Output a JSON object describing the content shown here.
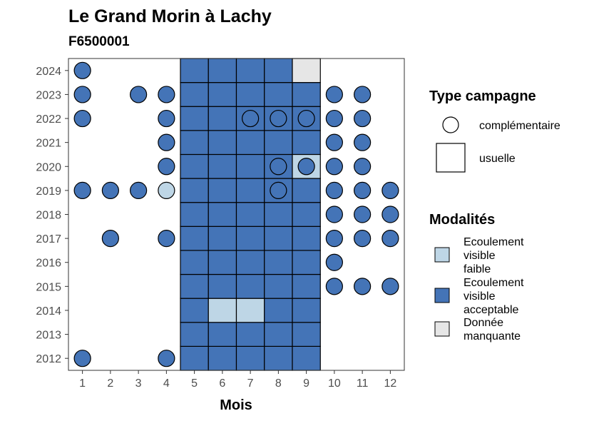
{
  "chart_data": {
    "type": "heatmap",
    "title": "Le Grand Morin à Lachy",
    "subtitle": "F6500001",
    "xlabel": "Mois",
    "ylabel": "",
    "x_ticks": [
      "1",
      "2",
      "3",
      "4",
      "5",
      "6",
      "7",
      "8",
      "9",
      "10",
      "11",
      "12"
    ],
    "y_ticks": [
      "2012",
      "2013",
      "2014",
      "2015",
      "2016",
      "2017",
      "2018",
      "2019",
      "2020",
      "2021",
      "2022",
      "2023",
      "2024"
    ],
    "xlim": [
      0.5,
      12.5
    ],
    "ylim": [
      2011.5,
      2024.5
    ],
    "grid": false,
    "colors": {
      "Ecoulement visible faible": "#bed6e6",
      "Ecoulement visible acceptable": "#4474b7",
      "Donnée manquante": "#e6e6e6"
    },
    "points": [
      {
        "year": 2012,
        "month": 5,
        "type": "usuelle",
        "modalite": "Ecoulement visible acceptable"
      },
      {
        "year": 2012,
        "month": 6,
        "type": "usuelle",
        "modalite": "Ecoulement visible acceptable"
      },
      {
        "year": 2012,
        "month": 7,
        "type": "usuelle",
        "modalite": "Ecoulement visible acceptable"
      },
      {
        "year": 2012,
        "month": 8,
        "type": "usuelle",
        "modalite": "Ecoulement visible acceptable"
      },
      {
        "year": 2012,
        "month": 9,
        "type": "usuelle",
        "modalite": "Ecoulement visible acceptable"
      },
      {
        "year": 2013,
        "month": 5,
        "type": "usuelle",
        "modalite": "Ecoulement visible acceptable"
      },
      {
        "year": 2013,
        "month": 6,
        "type": "usuelle",
        "modalite": "Ecoulement visible acceptable"
      },
      {
        "year": 2013,
        "month": 7,
        "type": "usuelle",
        "modalite": "Ecoulement visible acceptable"
      },
      {
        "year": 2013,
        "month": 8,
        "type": "usuelle",
        "modalite": "Ecoulement visible acceptable"
      },
      {
        "year": 2013,
        "month": 9,
        "type": "usuelle",
        "modalite": "Ecoulement visible acceptable"
      },
      {
        "year": 2014,
        "month": 5,
        "type": "usuelle",
        "modalite": "Ecoulement visible acceptable"
      },
      {
        "year": 2014,
        "month": 6,
        "type": "usuelle",
        "modalite": "Ecoulement visible faible"
      },
      {
        "year": 2014,
        "month": 7,
        "type": "usuelle",
        "modalite": "Ecoulement visible faible"
      },
      {
        "year": 2014,
        "month": 8,
        "type": "usuelle",
        "modalite": "Ecoulement visible acceptable"
      },
      {
        "year": 2014,
        "month": 9,
        "type": "usuelle",
        "modalite": "Ecoulement visible acceptable"
      },
      {
        "year": 2015,
        "month": 5,
        "type": "usuelle",
        "modalite": "Ecoulement visible acceptable"
      },
      {
        "year": 2015,
        "month": 6,
        "type": "usuelle",
        "modalite": "Ecoulement visible acceptable"
      },
      {
        "year": 2015,
        "month": 7,
        "type": "usuelle",
        "modalite": "Ecoulement visible acceptable"
      },
      {
        "year": 2015,
        "month": 8,
        "type": "usuelle",
        "modalite": "Ecoulement visible acceptable"
      },
      {
        "year": 2015,
        "month": 9,
        "type": "usuelle",
        "modalite": "Ecoulement visible acceptable"
      },
      {
        "year": 2016,
        "month": 5,
        "type": "usuelle",
        "modalite": "Ecoulement visible acceptable"
      },
      {
        "year": 2016,
        "month": 6,
        "type": "usuelle",
        "modalite": "Ecoulement visible acceptable"
      },
      {
        "year": 2016,
        "month": 7,
        "type": "usuelle",
        "modalite": "Ecoulement visible acceptable"
      },
      {
        "year": 2016,
        "month": 8,
        "type": "usuelle",
        "modalite": "Ecoulement visible acceptable"
      },
      {
        "year": 2016,
        "month": 9,
        "type": "usuelle",
        "modalite": "Ecoulement visible acceptable"
      },
      {
        "year": 2017,
        "month": 5,
        "type": "usuelle",
        "modalite": "Ecoulement visible acceptable"
      },
      {
        "year": 2017,
        "month": 6,
        "type": "usuelle",
        "modalite": "Ecoulement visible acceptable"
      },
      {
        "year": 2017,
        "month": 7,
        "type": "usuelle",
        "modalite": "Ecoulement visible acceptable"
      },
      {
        "year": 2017,
        "month": 8,
        "type": "usuelle",
        "modalite": "Ecoulement visible acceptable"
      },
      {
        "year": 2017,
        "month": 9,
        "type": "usuelle",
        "modalite": "Ecoulement visible acceptable"
      },
      {
        "year": 2018,
        "month": 5,
        "type": "usuelle",
        "modalite": "Ecoulement visible acceptable"
      },
      {
        "year": 2018,
        "month": 6,
        "type": "usuelle",
        "modalite": "Ecoulement visible acceptable"
      },
      {
        "year": 2018,
        "month": 7,
        "type": "usuelle",
        "modalite": "Ecoulement visible acceptable"
      },
      {
        "year": 2018,
        "month": 8,
        "type": "usuelle",
        "modalite": "Ecoulement visible acceptable"
      },
      {
        "year": 2018,
        "month": 9,
        "type": "usuelle",
        "modalite": "Ecoulement visible acceptable"
      },
      {
        "year": 2019,
        "month": 5,
        "type": "usuelle",
        "modalite": "Ecoulement visible acceptable"
      },
      {
        "year": 2019,
        "month": 6,
        "type": "usuelle",
        "modalite": "Ecoulement visible acceptable"
      },
      {
        "year": 2019,
        "month": 7,
        "type": "usuelle",
        "modalite": "Ecoulement visible acceptable"
      },
      {
        "year": 2019,
        "month": 8,
        "type": "usuelle",
        "modalite": "Ecoulement visible acceptable"
      },
      {
        "year": 2019,
        "month": 9,
        "type": "usuelle",
        "modalite": "Ecoulement visible acceptable"
      },
      {
        "year": 2020,
        "month": 5,
        "type": "usuelle",
        "modalite": "Ecoulement visible acceptable"
      },
      {
        "year": 2020,
        "month": 6,
        "type": "usuelle",
        "modalite": "Ecoulement visible acceptable"
      },
      {
        "year": 2020,
        "month": 7,
        "type": "usuelle",
        "modalite": "Ecoulement visible acceptable"
      },
      {
        "year": 2020,
        "month": 8,
        "type": "usuelle",
        "modalite": "Ecoulement visible acceptable"
      },
      {
        "year": 2020,
        "month": 9,
        "type": "usuelle",
        "modalite": "Ecoulement visible faible"
      },
      {
        "year": 2021,
        "month": 5,
        "type": "usuelle",
        "modalite": "Ecoulement visible acceptable"
      },
      {
        "year": 2021,
        "month": 6,
        "type": "usuelle",
        "modalite": "Ecoulement visible acceptable"
      },
      {
        "year": 2021,
        "month": 7,
        "type": "usuelle",
        "modalite": "Ecoulement visible acceptable"
      },
      {
        "year": 2021,
        "month": 8,
        "type": "usuelle",
        "modalite": "Ecoulement visible acceptable"
      },
      {
        "year": 2021,
        "month": 9,
        "type": "usuelle",
        "modalite": "Ecoulement visible acceptable"
      },
      {
        "year": 2022,
        "month": 5,
        "type": "usuelle",
        "modalite": "Ecoulement visible acceptable"
      },
      {
        "year": 2022,
        "month": 6,
        "type": "usuelle",
        "modalite": "Ecoulement visible acceptable"
      },
      {
        "year": 2022,
        "month": 7,
        "type": "usuelle",
        "modalite": "Ecoulement visible acceptable"
      },
      {
        "year": 2022,
        "month": 8,
        "type": "usuelle",
        "modalite": "Ecoulement visible acceptable"
      },
      {
        "year": 2022,
        "month": 9,
        "type": "usuelle",
        "modalite": "Ecoulement visible acceptable"
      },
      {
        "year": 2023,
        "month": 5,
        "type": "usuelle",
        "modalite": "Ecoulement visible acceptable"
      },
      {
        "year": 2023,
        "month": 6,
        "type": "usuelle",
        "modalite": "Ecoulement visible acceptable"
      },
      {
        "year": 2023,
        "month": 7,
        "type": "usuelle",
        "modalite": "Ecoulement visible acceptable"
      },
      {
        "year": 2023,
        "month": 8,
        "type": "usuelle",
        "modalite": "Ecoulement visible acceptable"
      },
      {
        "year": 2023,
        "month": 9,
        "type": "usuelle",
        "modalite": "Ecoulement visible acceptable"
      },
      {
        "year": 2024,
        "month": 5,
        "type": "usuelle",
        "modalite": "Ecoulement visible acceptable"
      },
      {
        "year": 2024,
        "month": 6,
        "type": "usuelle",
        "modalite": "Ecoulement visible acceptable"
      },
      {
        "year": 2024,
        "month": 7,
        "type": "usuelle",
        "modalite": "Ecoulement visible acceptable"
      },
      {
        "year": 2024,
        "month": 8,
        "type": "usuelle",
        "modalite": "Ecoulement visible acceptable"
      },
      {
        "year": 2024,
        "month": 9,
        "type": "usuelle",
        "modalite": "Donnée manquante"
      },
      {
        "year": 2012,
        "month": 1,
        "type": "complémentaire",
        "modalite": "Ecoulement visible acceptable"
      },
      {
        "year": 2012,
        "month": 4,
        "type": "complémentaire",
        "modalite": "Ecoulement visible acceptable"
      },
      {
        "year": 2015,
        "month": 10,
        "type": "complémentaire",
        "modalite": "Ecoulement visible acceptable"
      },
      {
        "year": 2015,
        "month": 11,
        "type": "complémentaire",
        "modalite": "Ecoulement visible acceptable"
      },
      {
        "year": 2015,
        "month": 12,
        "type": "complémentaire",
        "modalite": "Ecoulement visible acceptable"
      },
      {
        "year": 2016,
        "month": 10,
        "type": "complémentaire",
        "modalite": "Ecoulement visible acceptable"
      },
      {
        "year": 2017,
        "month": 2,
        "type": "complémentaire",
        "modalite": "Ecoulement visible acceptable"
      },
      {
        "year": 2017,
        "month": 4,
        "type": "complémentaire",
        "modalite": "Ecoulement visible acceptable"
      },
      {
        "year": 2017,
        "month": 10,
        "type": "complémentaire",
        "modalite": "Ecoulement visible acceptable"
      },
      {
        "year": 2017,
        "month": 11,
        "type": "complémentaire",
        "modalite": "Ecoulement visible acceptable"
      },
      {
        "year": 2017,
        "month": 12,
        "type": "complémentaire",
        "modalite": "Ecoulement visible acceptable"
      },
      {
        "year": 2018,
        "month": 10,
        "type": "complémentaire",
        "modalite": "Ecoulement visible acceptable"
      },
      {
        "year": 2018,
        "month": 11,
        "type": "complémentaire",
        "modalite": "Ecoulement visible acceptable"
      },
      {
        "year": 2018,
        "month": 12,
        "type": "complémentaire",
        "modalite": "Ecoulement visible acceptable"
      },
      {
        "year": 2019,
        "month": 1,
        "type": "complémentaire",
        "modalite": "Ecoulement visible acceptable"
      },
      {
        "year": 2019,
        "month": 2,
        "type": "complémentaire",
        "modalite": "Ecoulement visible acceptable"
      },
      {
        "year": 2019,
        "month": 3,
        "type": "complémentaire",
        "modalite": "Ecoulement visible acceptable"
      },
      {
        "year": 2019,
        "month": 4,
        "type": "complémentaire",
        "modalite": "Ecoulement visible faible"
      },
      {
        "year": 2019,
        "month": 8,
        "type": "complémentaire",
        "modalite": "Ecoulement visible acceptable"
      },
      {
        "year": 2019,
        "month": 10,
        "type": "complémentaire",
        "modalite": "Ecoulement visible acceptable"
      },
      {
        "year": 2019,
        "month": 11,
        "type": "complémentaire",
        "modalite": "Ecoulement visible acceptable"
      },
      {
        "year": 2019,
        "month": 12,
        "type": "complémentaire",
        "modalite": "Ecoulement visible acceptable"
      },
      {
        "year": 2020,
        "month": 4,
        "type": "complémentaire",
        "modalite": "Ecoulement visible acceptable"
      },
      {
        "year": 2020,
        "month": 8,
        "type": "complémentaire",
        "modalite": "Ecoulement visible acceptable"
      },
      {
        "year": 2020,
        "month": 9,
        "type": "complémentaire",
        "modalite": "Ecoulement visible acceptable"
      },
      {
        "year": 2020,
        "month": 10,
        "type": "complémentaire",
        "modalite": "Ecoulement visible acceptable"
      },
      {
        "year": 2020,
        "month": 11,
        "type": "complémentaire",
        "modalite": "Ecoulement visible acceptable"
      },
      {
        "year": 2021,
        "month": 4,
        "type": "complémentaire",
        "modalite": "Ecoulement visible acceptable"
      },
      {
        "year": 2021,
        "month": 10,
        "type": "complémentaire",
        "modalite": "Ecoulement visible acceptable"
      },
      {
        "year": 2021,
        "month": 11,
        "type": "complémentaire",
        "modalite": "Ecoulement visible acceptable"
      },
      {
        "year": 2022,
        "month": 1,
        "type": "complémentaire",
        "modalite": "Ecoulement visible acceptable"
      },
      {
        "year": 2022,
        "month": 4,
        "type": "complémentaire",
        "modalite": "Ecoulement visible acceptable"
      },
      {
        "year": 2022,
        "month": 7,
        "type": "complémentaire",
        "modalite": "Ecoulement visible acceptable"
      },
      {
        "year": 2022,
        "month": 8,
        "type": "complémentaire",
        "modalite": "Ecoulement visible acceptable"
      },
      {
        "year": 2022,
        "month": 9,
        "type": "complémentaire",
        "modalite": "Ecoulement visible acceptable"
      },
      {
        "year": 2022,
        "month": 10,
        "type": "complémentaire",
        "modalite": "Ecoulement visible acceptable"
      },
      {
        "year": 2022,
        "month": 11,
        "type": "complémentaire",
        "modalite": "Ecoulement visible acceptable"
      },
      {
        "year": 2023,
        "month": 1,
        "type": "complémentaire",
        "modalite": "Ecoulement visible acceptable"
      },
      {
        "year": 2023,
        "month": 3,
        "type": "complémentaire",
        "modalite": "Ecoulement visible acceptable"
      },
      {
        "year": 2023,
        "month": 4,
        "type": "complémentaire",
        "modalite": "Ecoulement visible acceptable"
      },
      {
        "year": 2023,
        "month": 10,
        "type": "complémentaire",
        "modalite": "Ecoulement visible acceptable"
      },
      {
        "year": 2023,
        "month": 11,
        "type": "complémentaire",
        "modalite": "Ecoulement visible acceptable"
      },
      {
        "year": 2024,
        "month": 1,
        "type": "complémentaire",
        "modalite": "Ecoulement visible acceptable"
      }
    ]
  },
  "legend_type": {
    "title": "Type campagne",
    "items": [
      {
        "label": "complémentaire",
        "shape": "circle"
      },
      {
        "label": "usuelle",
        "shape": "square"
      }
    ]
  },
  "legend_modalites": {
    "title": "Modalités",
    "items": [
      {
        "lines": [
          "Ecoulement",
          "visible",
          "faible"
        ],
        "color": "#bed6e6"
      },
      {
        "lines": [
          "Ecoulement",
          "visible",
          "acceptable"
        ],
        "color": "#4474b7"
      },
      {
        "lines": [
          "Donnée",
          "manquante"
        ],
        "color": "#e6e6e6"
      }
    ]
  }
}
